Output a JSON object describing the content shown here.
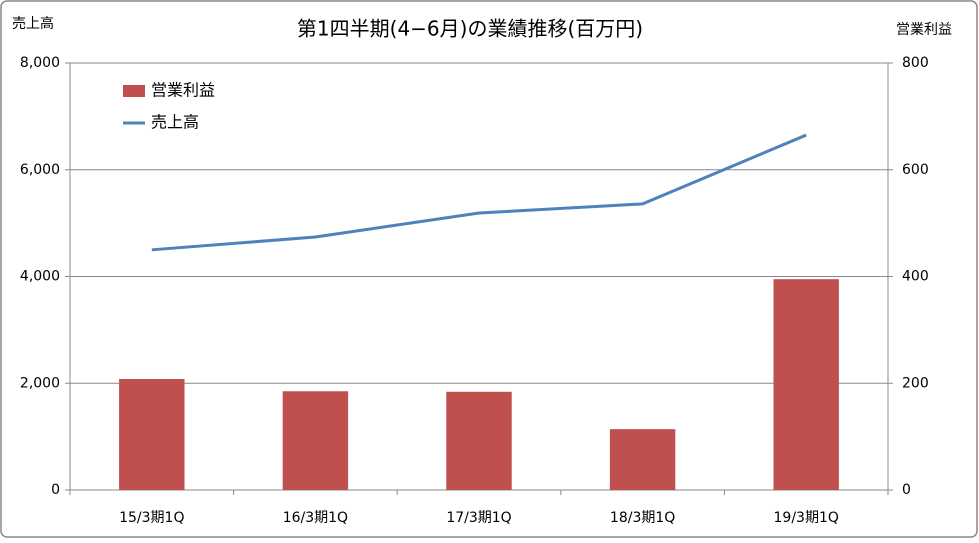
{
  "chart_data": {
    "type": "combo",
    "title": "第1四半期(4−6月)の業績推移(百万円)",
    "y_label": "売上高",
    "y2_label": "営業利益",
    "categories": [
      "15/3期1Q",
      "16/3期1Q",
      "17/3期1Q",
      "18/3期1Q",
      "19/3期1Q"
    ],
    "series": [
      {
        "name": "営業利益",
        "type": "bar",
        "color": "#c0504d",
        "axis": "y2",
        "values": [
          208,
          185,
          184,
          114,
          395
        ]
      },
      {
        "name": "売上高",
        "type": "line",
        "color": "#4f81bd",
        "values": [
          4500,
          4740,
          5190,
          5360,
          6650
        ]
      }
    ],
    "ylim": [
      0,
      8000
    ],
    "yticks": [
      0,
      {
        "value": 2000,
        "label": "2,000"
      },
      {
        "value": 4000,
        "label": "4,000"
      },
      {
        "value": 6000,
        "label": "6,000"
      },
      {
        "value": 8000,
        "label": "8,000"
      }
    ],
    "y2lim": [
      0,
      800
    ],
    "y2ticks": [
      0,
      200,
      400,
      600,
      800
    ],
    "grid": true,
    "legend": "top-left"
  }
}
